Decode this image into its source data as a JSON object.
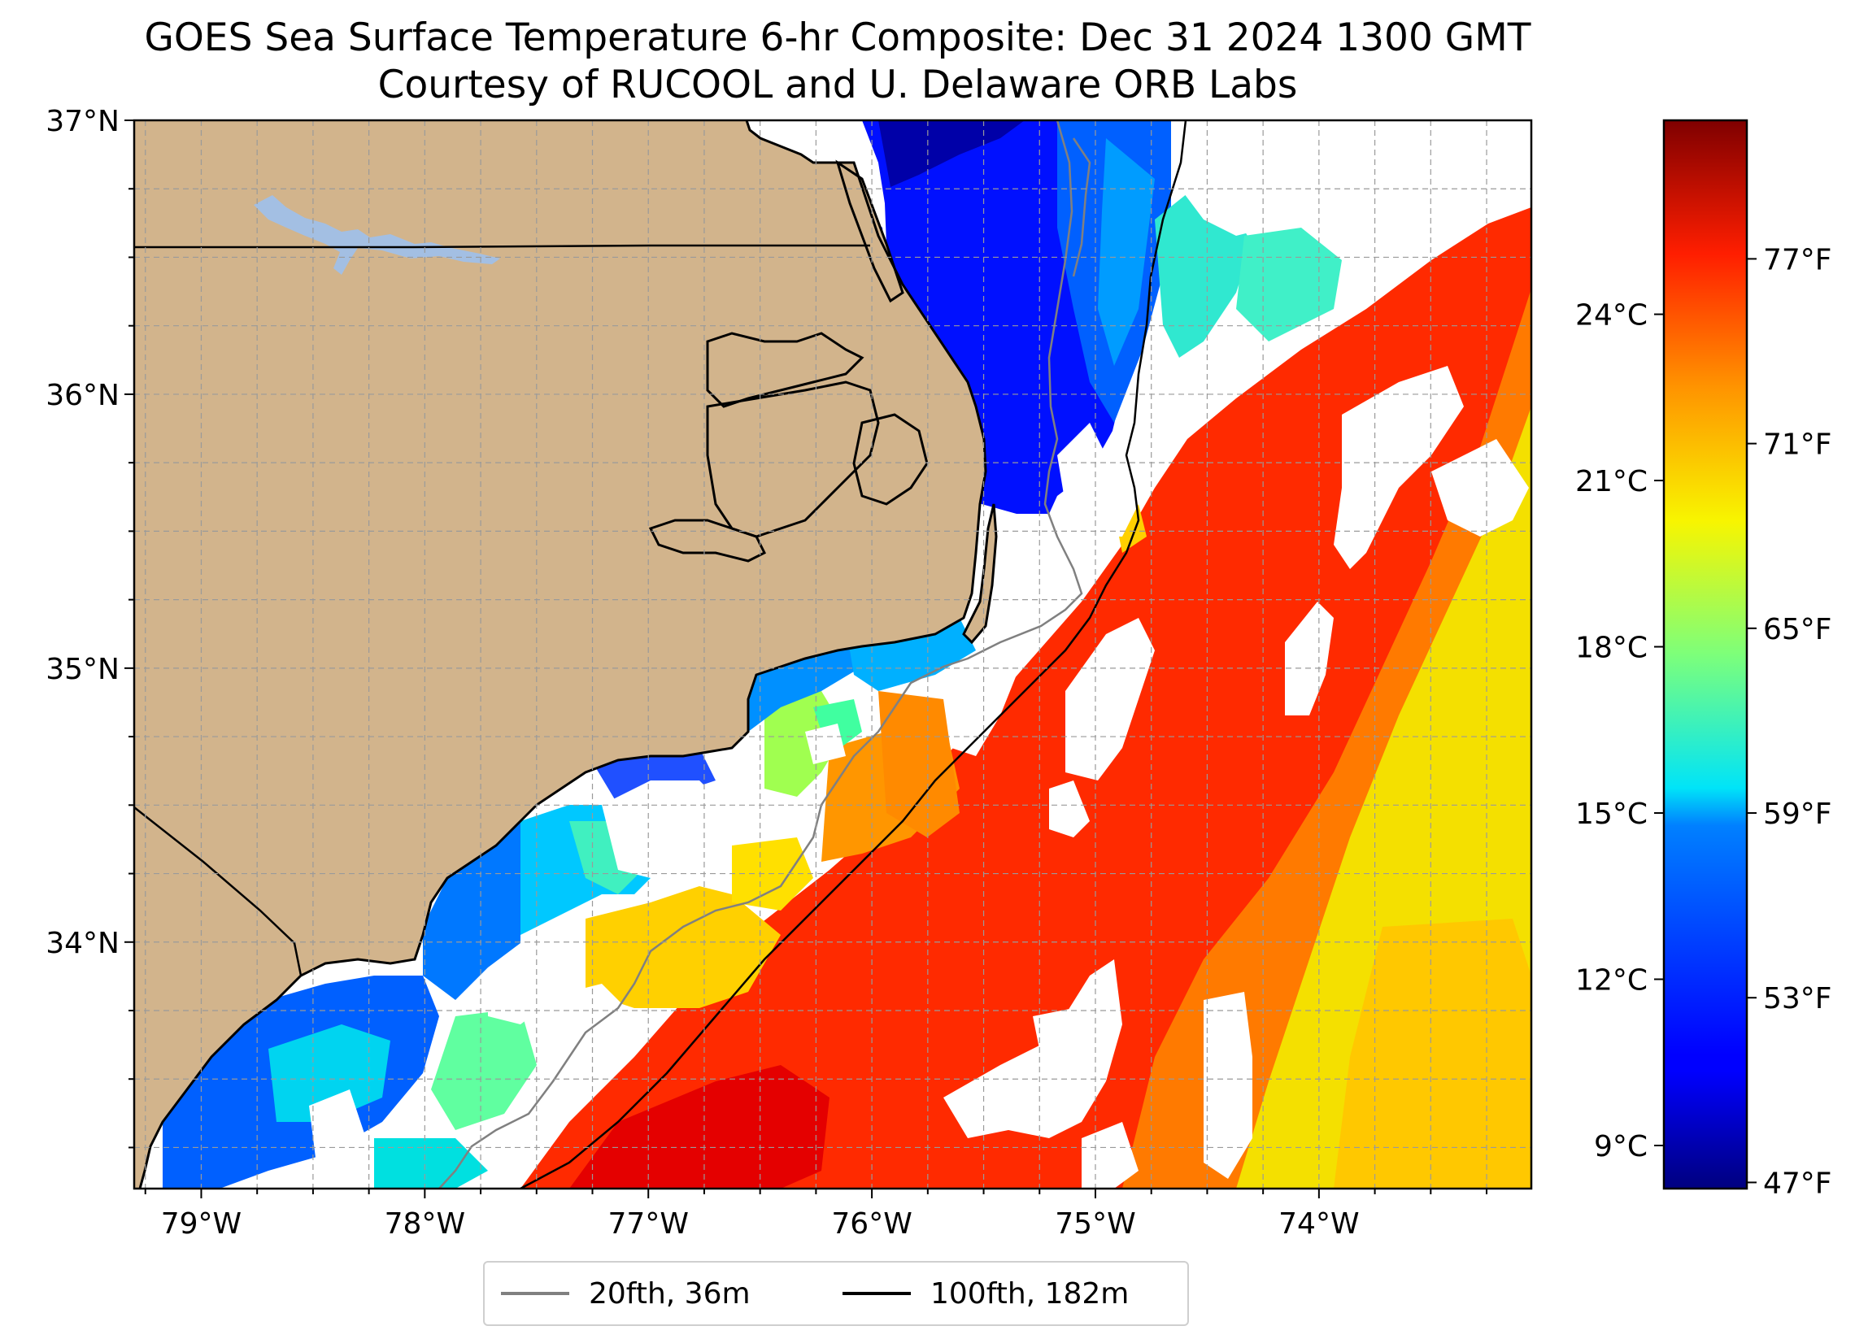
{
  "title": {
    "line1": "GOES Sea Surface Temperature 6-hr Composite: Dec 31 2024 1300 GMT",
    "line2": "Courtesy of RUCOOL and U. Delaware ORB Labs"
  },
  "map": {
    "lon_range": [
      -79.3,
      -73.05
    ],
    "lat_range": [
      33.1,
      37.0
    ],
    "land_color": "#d2b48c",
    "no_data_color": "#ffffff",
    "lake_color": "#a3bfe3",
    "grid": true,
    "lon_ticks": [
      {
        "value": -79,
        "label": "79°W"
      },
      {
        "value": -78,
        "label": "78°W"
      },
      {
        "value": -77,
        "label": "77°W"
      },
      {
        "value": -76,
        "label": "76°W"
      },
      {
        "value": -75,
        "label": "75°W"
      },
      {
        "value": -74,
        "label": "74°W"
      }
    ],
    "lat_ticks": [
      {
        "value": 37,
        "label": "37°N"
      },
      {
        "value": 36,
        "label": "36°N"
      },
      {
        "value": 35,
        "label": "35°N"
      },
      {
        "value": 34,
        "label": "34°N"
      }
    ]
  },
  "colorbar": {
    "colormap": "jet",
    "range_f": [
      46.8,
      81.5
    ],
    "celsius_ticks": [
      {
        "value": 24,
        "label": "24°C"
      },
      {
        "value": 21,
        "label": "21°C"
      },
      {
        "value": 18,
        "label": "18°C"
      },
      {
        "value": 15,
        "label": "15°C"
      },
      {
        "value": 12,
        "label": "12°C"
      },
      {
        "value": 9,
        "label": "9°C"
      }
    ],
    "fahrenheit_ticks": [
      {
        "value": 77,
        "label": "77°F"
      },
      {
        "value": 71,
        "label": "71°F"
      },
      {
        "value": 65,
        "label": "65°F"
      },
      {
        "value": 59,
        "label": "59°F"
      },
      {
        "value": 53,
        "label": "53°F"
      },
      {
        "value": 47,
        "label": "47°F"
      }
    ]
  },
  "legend": {
    "items": [
      {
        "label": "20fth, 36m",
        "color": "#808080"
      },
      {
        "label": "100fth, 182m",
        "color": "#000000"
      }
    ]
  }
}
